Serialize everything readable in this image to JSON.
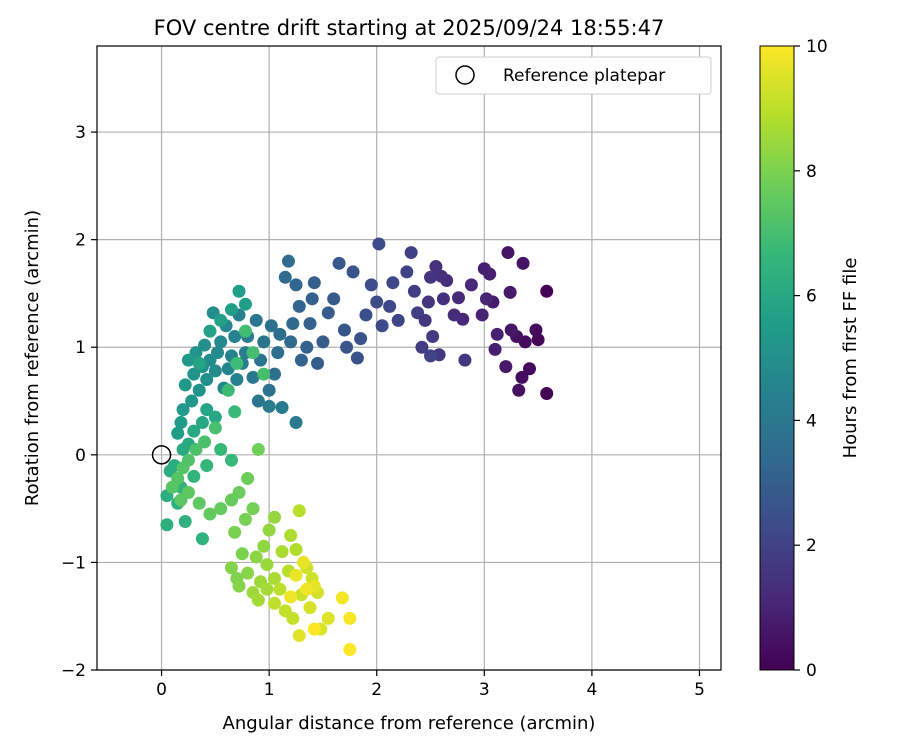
{
  "chart_data": {
    "type": "scatter",
    "title": "FOV centre drift starting at 2025/09/24 18:55:47",
    "xlabel": "Angular distance from reference (arcmin)",
    "ylabel": "Rotation from reference (arcmin)",
    "xlim": [
      -0.6,
      5.2
    ],
    "ylim": [
      -2.0,
      3.8
    ],
    "xticks": [
      0,
      1,
      2,
      3,
      4,
      5
    ],
    "yticks": [
      -2,
      -1,
      0,
      1,
      2,
      3
    ],
    "xtick_labels": [
      "0",
      "1",
      "2",
      "3",
      "4",
      "5"
    ],
    "ytick_labels": [
      "−2",
      "−1",
      "0",
      "1",
      "2",
      "3"
    ],
    "grid": true,
    "legend": {
      "position": "top-right",
      "entries": [
        {
          "label": "Reference platepar",
          "marker": "open-circle"
        }
      ],
      "reference_point": {
        "x": 0,
        "y": 0
      }
    },
    "colorbar": {
      "label": "Hours from first FF file",
      "range": [
        0,
        10
      ],
      "ticks": [
        0,
        2,
        4,
        6,
        8,
        10
      ],
      "tick_labels": [
        "0",
        "2",
        "4",
        "6",
        "8",
        "10"
      ],
      "colormap": [
        "#440154",
        "#482878",
        "#3e4989",
        "#31688e",
        "#26828e",
        "#1f9e89",
        "#35b779",
        "#6ece58",
        "#b5de2b",
        "#fde725"
      ]
    },
    "points": [
      [
        3.58,
        1.52,
        0.05
      ],
      [
        3.58,
        0.57,
        0.1
      ],
      [
        3.5,
        1.07,
        0.15
      ],
      [
        3.48,
        1.16,
        0.2
      ],
      [
        3.42,
        0.8,
        0.25
      ],
      [
        3.38,
        1.05,
        0.3
      ],
      [
        3.35,
        0.72,
        0.35
      ],
      [
        3.32,
        0.6,
        0.4
      ],
      [
        3.3,
        1.1,
        0.45
      ],
      [
        3.36,
        1.78,
        0.5
      ],
      [
        3.22,
        1.88,
        0.55
      ],
      [
        3.25,
        1.16,
        0.6
      ],
      [
        3.2,
        0.82,
        0.65
      ],
      [
        3.24,
        1.51,
        0.7
      ],
      [
        3.08,
        1.42,
        0.75
      ],
      [
        3.1,
        0.98,
        0.8
      ],
      [
        3.05,
        1.68,
        0.85
      ],
      [
        3.0,
        1.73,
        0.9
      ],
      [
        3.12,
        1.12,
        0.95
      ],
      [
        2.98,
        1.3,
        1.0
      ],
      [
        3.02,
        1.45,
        1.05
      ],
      [
        2.88,
        1.58,
        1.1
      ],
      [
        2.8,
        1.26,
        1.15
      ],
      [
        2.76,
        1.46,
        1.2
      ],
      [
        2.72,
        1.3,
        1.25
      ],
      [
        2.65,
        1.62,
        1.3
      ],
      [
        2.62,
        1.45,
        1.35
      ],
      [
        2.6,
        1.66,
        1.4
      ],
      [
        2.55,
        1.75,
        1.45
      ],
      [
        2.5,
        1.65,
        1.5
      ],
      [
        2.48,
        1.42,
        1.55
      ],
      [
        2.45,
        1.25,
        1.6
      ],
      [
        2.58,
        0.93,
        1.65
      ],
      [
        2.82,
        0.88,
        1.7
      ],
      [
        2.52,
        1.1,
        1.75
      ],
      [
        2.42,
        1.0,
        1.8
      ],
      [
        2.38,
        1.32,
        1.85
      ],
      [
        2.35,
        1.52,
        1.9
      ],
      [
        2.32,
        1.88,
        1.95
      ],
      [
        2.28,
        1.7,
        2.0
      ],
      [
        2.5,
        0.92,
        2.05
      ],
      [
        2.2,
        1.25,
        2.1
      ],
      [
        2.15,
        1.6,
        2.15
      ],
      [
        2.12,
        1.38,
        2.2
      ],
      [
        2.05,
        1.2,
        2.25
      ],
      [
        2.0,
        1.42,
        2.3
      ],
      [
        2.02,
        1.96,
        2.35
      ],
      [
        1.95,
        1.58,
        2.4
      ],
      [
        1.9,
        1.3,
        2.45
      ],
      [
        1.85,
        1.08,
        2.5
      ],
      [
        1.82,
        0.9,
        2.55
      ],
      [
        1.78,
        1.7,
        2.6
      ],
      [
        1.72,
        1.0,
        2.65
      ],
      [
        1.7,
        1.16,
        2.7
      ],
      [
        1.65,
        1.78,
        2.75
      ],
      [
        1.6,
        1.45,
        2.8
      ],
      [
        1.55,
        1.32,
        2.85
      ],
      [
        1.5,
        1.05,
        2.9
      ],
      [
        1.45,
        0.85,
        2.95
      ],
      [
        1.42,
        1.6,
        3.0
      ],
      [
        1.4,
        1.45,
        3.05
      ],
      [
        1.38,
        1.22,
        3.1
      ],
      [
        1.35,
        1.0,
        3.15
      ],
      [
        1.3,
        0.88,
        3.2
      ],
      [
        1.28,
        1.38,
        3.25
      ],
      [
        1.25,
        1.58,
        3.3
      ],
      [
        1.22,
        1.22,
        3.35
      ],
      [
        1.2,
        1.05,
        3.4
      ],
      [
        1.15,
        1.65,
        3.45
      ],
      [
        1.18,
        1.8,
        3.5
      ],
      [
        1.1,
        1.12,
        3.55
      ],
      [
        1.08,
        0.95,
        3.6
      ],
      [
        1.05,
        0.75,
        3.65
      ],
      [
        1.02,
        1.2,
        3.7
      ],
      [
        1.0,
        0.6,
        3.75
      ],
      [
        0.95,
        1.05,
        3.8
      ],
      [
        0.92,
        0.88,
        3.85
      ],
      [
        0.9,
        0.5,
        3.9
      ],
      [
        0.88,
        1.25,
        3.95
      ],
      [
        0.85,
        0.72,
        4.0
      ],
      [
        1.25,
        0.3,
        4.05
      ],
      [
        1.12,
        0.44,
        4.1
      ],
      [
        1.0,
        0.45,
        4.15
      ],
      [
        0.8,
        1.1,
        4.2
      ],
      [
        0.78,
        0.95,
        4.25
      ],
      [
        0.75,
        0.85,
        4.3
      ],
      [
        0.72,
        1.3,
        4.35
      ],
      [
        0.7,
        0.7,
        4.4
      ],
      [
        0.68,
        1.1,
        4.45
      ],
      [
        0.65,
        0.92,
        4.5
      ],
      [
        0.62,
        0.8,
        4.55
      ],
      [
        0.6,
        1.2,
        4.6
      ],
      [
        0.58,
        0.62,
        4.65
      ],
      [
        0.55,
        1.05,
        4.7
      ],
      [
        0.52,
        0.95,
        4.75
      ],
      [
        0.5,
        0.78,
        4.8
      ],
      [
        0.48,
        1.32,
        4.85
      ],
      [
        0.45,
        0.88,
        4.9
      ],
      [
        0.42,
        0.7,
        4.95
      ],
      [
        0.4,
        1.02,
        5.0
      ],
      [
        0.38,
        0.82,
        5.05
      ],
      [
        0.35,
        0.6,
        5.1
      ],
      [
        0.32,
        0.95,
        5.15
      ],
      [
        0.3,
        0.75,
        5.2
      ],
      [
        0.28,
        0.5,
        5.25
      ],
      [
        0.25,
        0.88,
        5.3
      ],
      [
        0.22,
        0.65,
        5.35
      ],
      [
        0.2,
        0.42,
        5.4
      ],
      [
        0.18,
        0.3,
        5.45
      ],
      [
        0.15,
        0.2,
        5.5
      ],
      [
        0.72,
        1.52,
        5.55
      ],
      [
        0.78,
        1.4,
        5.6
      ],
      [
        0.65,
        1.35,
        5.65
      ],
      [
        0.55,
        1.25,
        5.7
      ],
      [
        0.45,
        1.15,
        5.75
      ],
      [
        0.35,
        0.85,
        5.8
      ],
      [
        0.42,
        0.42,
        5.85
      ],
      [
        0.5,
        0.35,
        5.9
      ],
      [
        0.38,
        0.3,
        5.95
      ],
      [
        0.3,
        0.22,
        6.0
      ],
      [
        0.25,
        0.1,
        6.05
      ],
      [
        0.2,
        0.05,
        6.1
      ],
      [
        0.12,
        -0.1,
        6.15
      ],
      [
        0.08,
        -0.15,
        6.2
      ],
      [
        0.05,
        -0.38,
        6.25
      ],
      [
        0.05,
        -0.65,
        6.3
      ],
      [
        0.15,
        -0.45,
        6.35
      ],
      [
        0.22,
        -0.62,
        6.4
      ],
      [
        0.38,
        -0.78,
        6.45
      ],
      [
        0.18,
        -0.3,
        6.5
      ],
      [
        0.3,
        -0.2,
        6.55
      ],
      [
        0.42,
        -0.1,
        6.6
      ],
      [
        0.55,
        0.05,
        6.65
      ],
      [
        0.65,
        -0.05,
        6.7
      ],
      [
        0.68,
        0.4,
        6.75
      ],
      [
        0.62,
        0.6,
        6.8
      ],
      [
        0.7,
        0.85,
        6.85
      ],
      [
        0.78,
        1.15,
        6.9
      ],
      [
        0.85,
        0.95,
        6.95
      ],
      [
        0.95,
        0.75,
        7.0
      ],
      [
        0.5,
        0.25,
        7.05
      ],
      [
        0.4,
        0.12,
        7.1
      ],
      [
        0.32,
        0.05,
        7.15
      ],
      [
        0.25,
        -0.05,
        7.2
      ],
      [
        0.2,
        -0.12,
        7.25
      ],
      [
        0.15,
        -0.22,
        7.3
      ],
      [
        0.1,
        -0.3,
        7.35
      ],
      [
        0.18,
        -0.42,
        7.4
      ],
      [
        0.25,
        -0.35,
        7.45
      ],
      [
        0.35,
        -0.45,
        7.5
      ],
      [
        0.45,
        -0.55,
        7.55
      ],
      [
        0.55,
        -0.5,
        7.6
      ],
      [
        0.65,
        -0.42,
        7.65
      ],
      [
        0.72,
        -0.35,
        7.7
      ],
      [
        0.8,
        -0.22,
        7.75
      ],
      [
        0.9,
        0.05,
        7.8
      ],
      [
        0.85,
        -0.5,
        7.85
      ],
      [
        0.78,
        -0.6,
        7.9
      ],
      [
        0.68,
        -0.72,
        7.95
      ],
      [
        0.75,
        -0.92,
        8.0
      ],
      [
        0.7,
        -1.15,
        8.05
      ],
      [
        0.65,
        -1.05,
        8.1
      ],
      [
        0.72,
        -1.22,
        8.15
      ],
      [
        0.8,
        -1.1,
        8.2
      ],
      [
        0.88,
        -0.95,
        8.25
      ],
      [
        0.95,
        -0.85,
        8.3
      ],
      [
        1.0,
        -0.7,
        8.35
      ],
      [
        1.05,
        -0.58,
        8.4
      ],
      [
        0.98,
        -1.02,
        8.45
      ],
      [
        0.92,
        -1.18,
        8.5
      ],
      [
        0.85,
        -1.28,
        8.55
      ],
      [
        0.9,
        -1.35,
        8.6
      ],
      [
        0.98,
        -1.25,
        8.65
      ],
      [
        1.05,
        -1.15,
        8.7
      ],
      [
        1.12,
        -0.9,
        8.75
      ],
      [
        1.2,
        -0.75,
        8.8
      ],
      [
        1.25,
        -0.88,
        8.85
      ],
      [
        1.28,
        -0.52,
        8.9
      ],
      [
        1.18,
        -1.08,
        8.95
      ],
      [
        1.1,
        -1.25,
        9.0
      ],
      [
        1.05,
        -1.38,
        9.05
      ],
      [
        1.15,
        -1.45,
        9.1
      ],
      [
        1.22,
        -1.52,
        9.15
      ],
      [
        1.3,
        -1.3,
        9.2
      ],
      [
        1.35,
        -1.05,
        9.25
      ],
      [
        1.4,
        -1.15,
        9.3
      ],
      [
        1.45,
        -1.28,
        9.35
      ],
      [
        1.38,
        -1.42,
        9.4
      ],
      [
        1.48,
        -1.62,
        9.45
      ],
      [
        1.55,
        -1.52,
        9.5
      ],
      [
        1.28,
        -1.68,
        9.55
      ],
      [
        1.42,
        -1.22,
        9.6
      ],
      [
        1.32,
        -1.0,
        9.65
      ],
      [
        1.25,
        -1.12,
        9.7
      ],
      [
        1.2,
        -1.32,
        9.75
      ],
      [
        1.35,
        -1.25,
        9.8
      ],
      [
        1.68,
        -1.33,
        9.85
      ],
      [
        1.75,
        -1.52,
        9.9
      ],
      [
        1.75,
        -1.81,
        9.95
      ],
      [
        1.42,
        -1.62,
        10.0
      ]
    ]
  }
}
